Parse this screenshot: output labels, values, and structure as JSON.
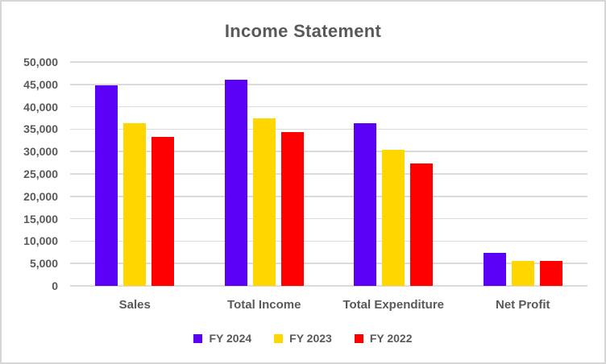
{
  "chart_data": {
    "type": "bar",
    "title": "Income Statement",
    "categories": [
      "Sales",
      "Total Income",
      "Total Expenditure",
      "Net Profit"
    ],
    "series": [
      {
        "name": "FY 2024",
        "color": "#5A00F5",
        "values": [
          44700,
          46100,
          36400,
          7400
        ]
      },
      {
        "name": "FY 2023",
        "color": "#FFD600",
        "values": [
          36400,
          37500,
          30400,
          5500
        ]
      },
      {
        "name": "FY 2022",
        "color": "#FF0000",
        "values": [
          33200,
          34400,
          27300,
          5600
        ]
      }
    ],
    "xlabel": "",
    "ylabel": "",
    "ylim": [
      0,
      50000
    ],
    "ytick_step": 5000,
    "ytick_labels": [
      "0",
      "5,000",
      "10,000",
      "15,000",
      "20,000",
      "25,000",
      "30,000",
      "35,000",
      "40,000",
      "45,000",
      "50,000"
    ],
    "grid": true,
    "legend_position": "bottom",
    "colors": {
      "text": "#595959",
      "gridline": "#DBDBDB",
      "background": "#FFFFFF",
      "border": "#D6D6D6"
    }
  }
}
